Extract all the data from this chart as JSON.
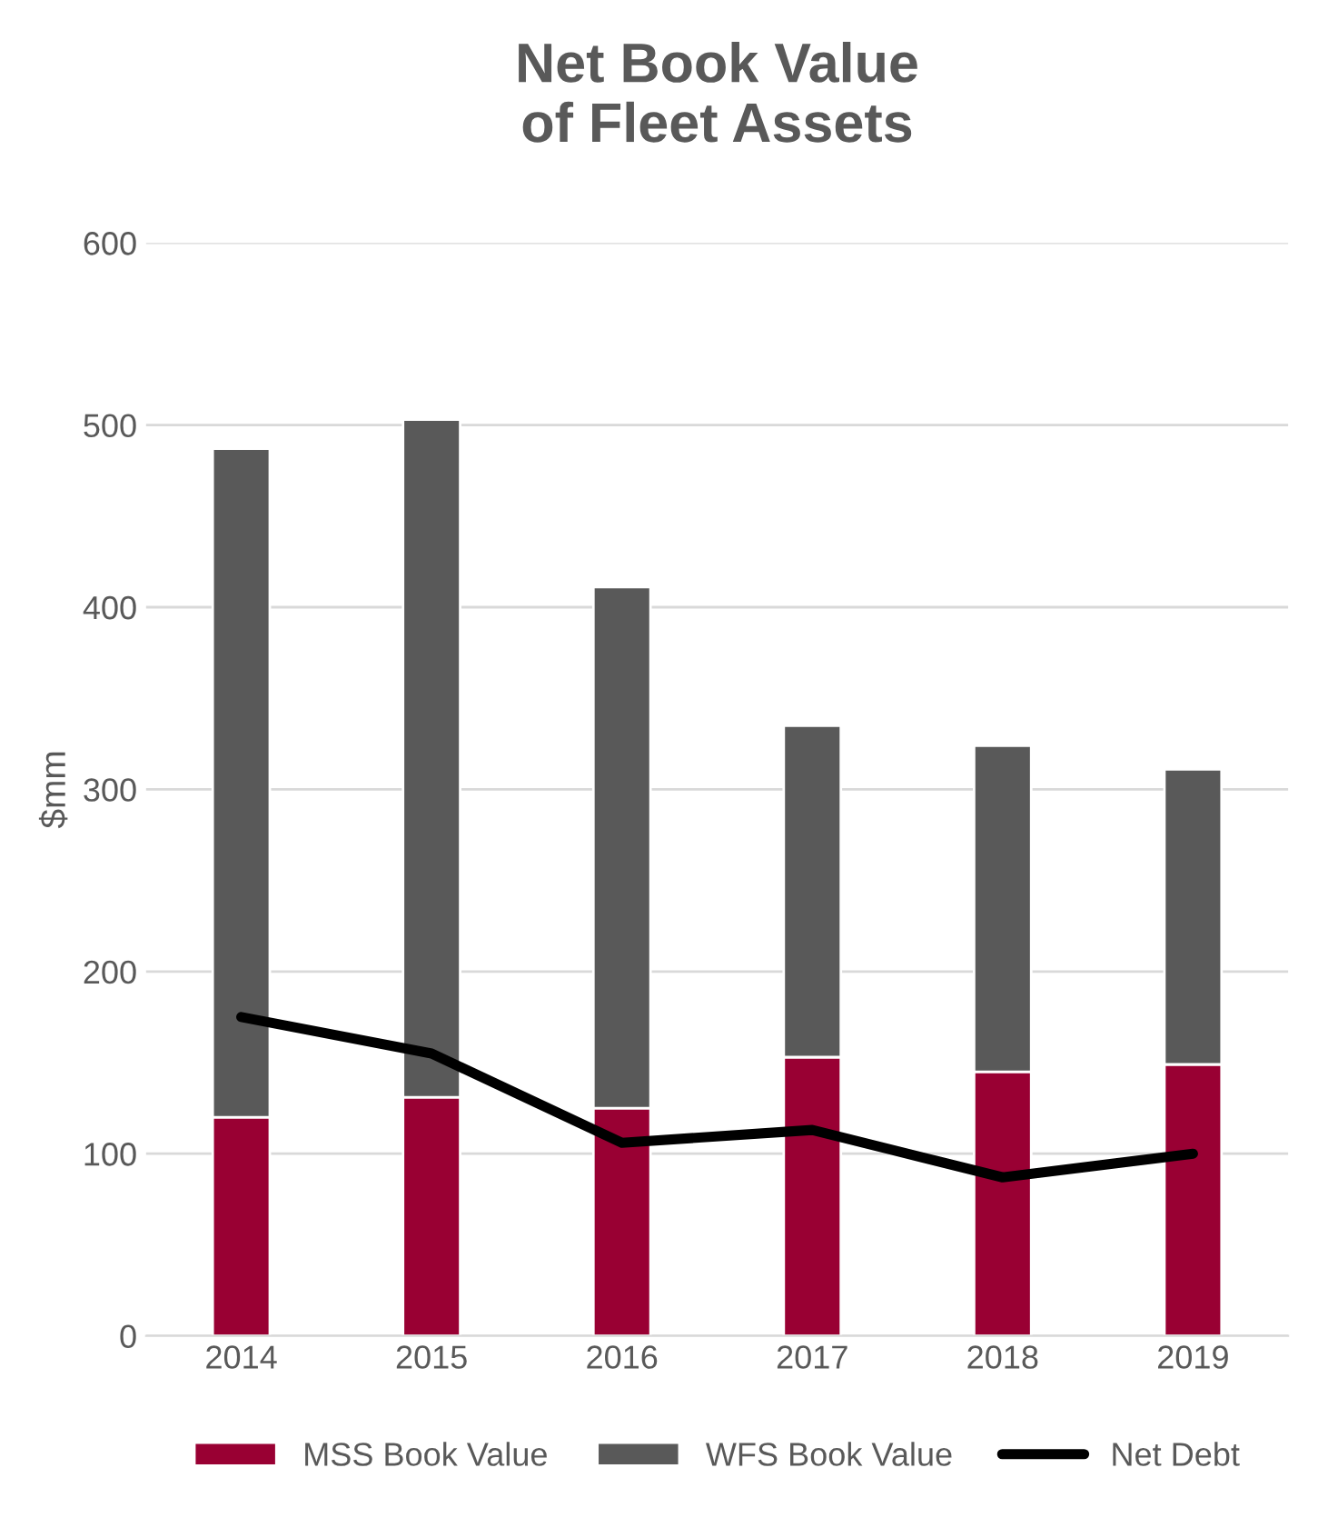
{
  "chart_data": {
    "type": "bar",
    "title": "Net Book Value\nof Fleet Assets",
    "ylabel": "$mm",
    "categories": [
      "2014",
      "2015",
      "2016",
      "2017",
      "2018",
      "2019"
    ],
    "stacked": true,
    "series": [
      {
        "name": "MSS Book Value",
        "color": "#990033",
        "values": [
          120,
          131,
          125,
          153,
          145,
          149
        ]
      },
      {
        "name": "WFS Book Value",
        "color": "#595959",
        "values": [
          367,
          372,
          286,
          182,
          179,
          162
        ]
      },
      {
        "name": "Net Debt",
        "type": "line",
        "color": "#000000",
        "values": [
          175,
          155,
          106,
          113,
          87,
          100
        ]
      }
    ],
    "ylim": [
      0,
      600
    ],
    "yticks": [
      0,
      100,
      200,
      300,
      400,
      500,
      600
    ],
    "grid": "y",
    "legend": "bottom"
  }
}
